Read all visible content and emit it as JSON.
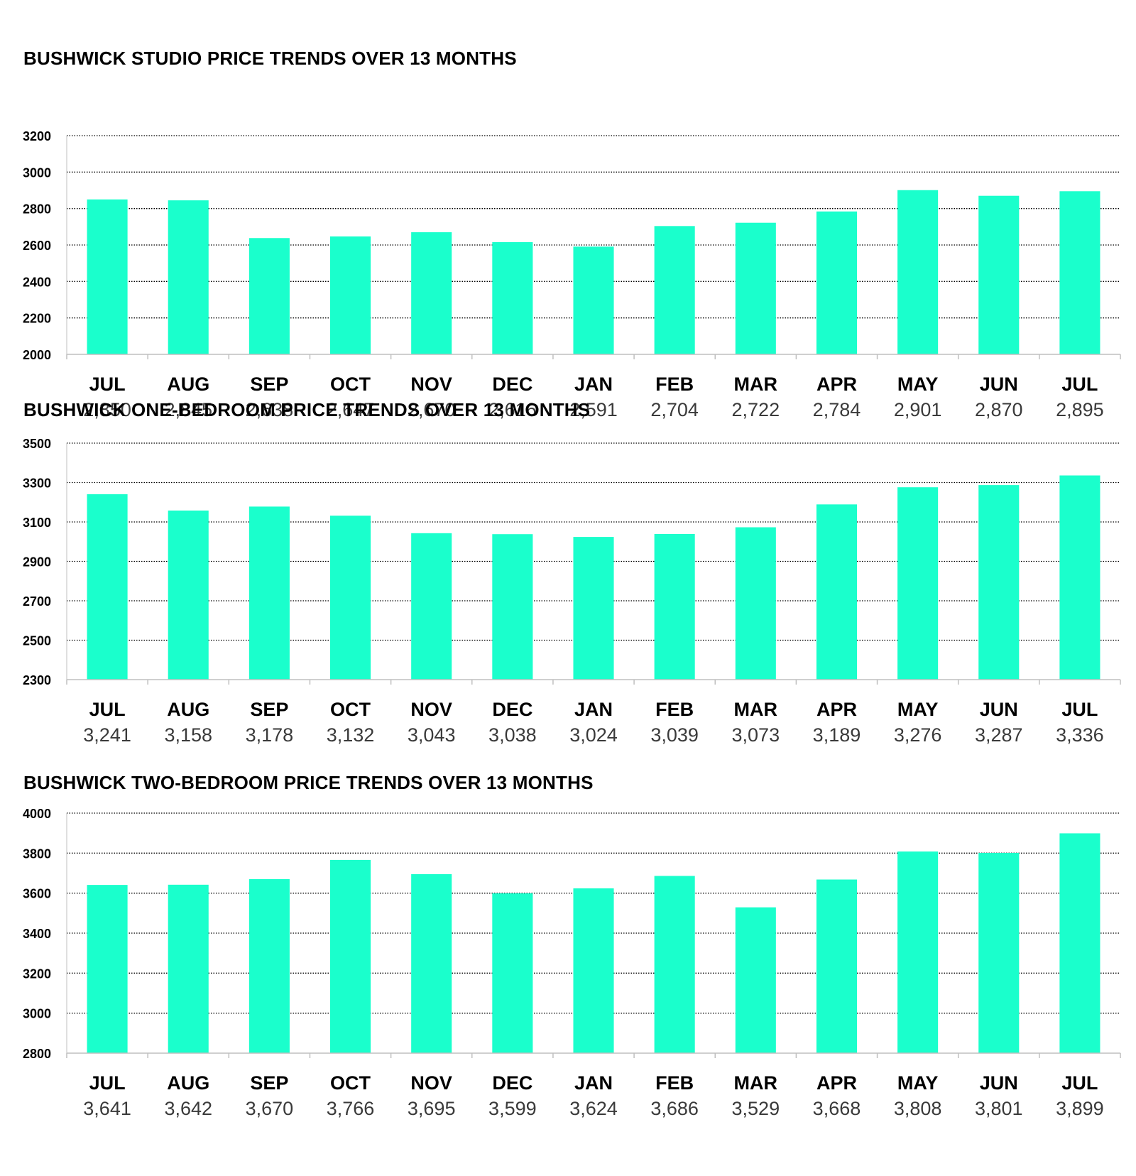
{
  "colors": {
    "bar": "#1affcc",
    "grid": "#000000",
    "axis": "#bfbfbf",
    "label": "#3a3a3a"
  },
  "chart_data": [
    {
      "type": "bar",
      "title": "BUSHWICK STUDIO PRICE TRENDS OVER 13 MONTHS",
      "categories": [
        "JUL",
        "AUG",
        "SEP",
        "OCT",
        "NOV",
        "DEC",
        "JAN",
        "FEB",
        "MAR",
        "APR",
        "MAY",
        "JUN",
        "JUL"
      ],
      "values": [
        2850,
        2845,
        2638,
        2647,
        2670,
        2616,
        2591,
        2704,
        2722,
        2784,
        2901,
        2870,
        2895
      ],
      "value_labels": [
        "2,850",
        "2,845",
        "2,638",
        "2,647",
        "2,670",
        "2,616",
        "2,591",
        "2,704",
        "2,722",
        "2,784",
        "2,901",
        "2,870",
        "2,895"
      ],
      "ylim": [
        2000,
        3200
      ],
      "yticks": [
        2000,
        2200,
        2400,
        2600,
        2800,
        3000,
        3200
      ],
      "grid": true
    },
    {
      "type": "bar",
      "title": "BUSHWICK ONE-BEDROOM PRICE TRENDS OVER 13 MONTHS",
      "categories": [
        "JUL",
        "AUG",
        "SEP",
        "OCT",
        "NOV",
        "DEC",
        "JAN",
        "FEB",
        "MAR",
        "APR",
        "MAY",
        "JUN",
        "JUL"
      ],
      "values": [
        3241,
        3158,
        3178,
        3132,
        3043,
        3038,
        3024,
        3039,
        3073,
        3189,
        3276,
        3287,
        3336
      ],
      "value_labels": [
        "3,241",
        "3,158",
        "3,178",
        "3,132",
        "3,043",
        "3,038",
        "3,024",
        "3,039",
        "3,073",
        "3,189",
        "3,276",
        "3,287",
        "3,336"
      ],
      "ylim": [
        2300,
        3500
      ],
      "yticks": [
        2300,
        2500,
        2700,
        2900,
        3100,
        3300,
        3500
      ],
      "grid": true
    },
    {
      "type": "bar",
      "title": "BUSHWICK TWO-BEDROOM PRICE TRENDS OVER 13 MONTHS",
      "categories": [
        "JUL",
        "AUG",
        "SEP",
        "OCT",
        "NOV",
        "DEC",
        "JAN",
        "FEB",
        "MAR",
        "APR",
        "MAY",
        "JUN",
        "JUL"
      ],
      "values": [
        3641,
        3642,
        3670,
        3766,
        3695,
        3599,
        3624,
        3686,
        3529,
        3668,
        3808,
        3801,
        3899
      ],
      "value_labels": [
        "3,641",
        "3,642",
        "3,670",
        "3,766",
        "3,695",
        "3,599",
        "3,624",
        "3,686",
        "3,529",
        "3,668",
        "3,808",
        "3,801",
        "3,899"
      ],
      "ylim": [
        2800,
        4000
      ],
      "yticks": [
        2800,
        3000,
        3200,
        3400,
        3600,
        3800,
        4000
      ],
      "grid": true
    }
  ]
}
